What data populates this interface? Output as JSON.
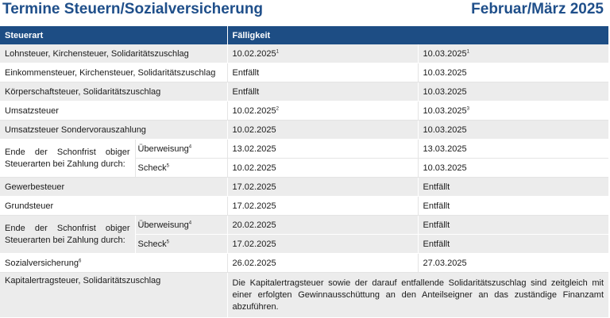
{
  "header": {
    "title": "Termine Steuern/Sozialversicherung",
    "period": "Februar/März 2025"
  },
  "table": {
    "columns": [
      "Steuerart",
      "Fälligkeit"
    ],
    "rows": {
      "lohnsteuer": {
        "label": "Lohnsteuer, Kirchensteuer, Solidaritätszuschlag",
        "feb": "10.02.2025",
        "feb_note": "1",
        "mar": "10.03.2025",
        "mar_note": "1"
      },
      "einkommensteuer": {
        "label": "Einkommensteuer, Kirchensteuer, Solidaritätszuschlag",
        "feb": "Entfällt",
        "mar": "10.03.2025"
      },
      "koerperschaftsteuer": {
        "label": "Körperschaftsteuer, Solidaritätszuschlag",
        "feb": "Entfällt",
        "mar": "10.03.2025"
      },
      "umsatzsteuer": {
        "label": "Umsatzsteuer",
        "feb": "10.02.2025",
        "feb_note": "2",
        "mar": "10.03.2025",
        "mar_note": "3"
      },
      "umsatzsteuer_sv": {
        "label": "Umsatzsteuer Sondervorauszahlung",
        "feb": "10.02.2025",
        "mar": "10.03.2025"
      },
      "schonfrist1": {
        "label": "Ende der Schonfrist obiger Steuerarten bei Zahlung durch:",
        "ueberweisung": "Überweisung",
        "ueberweisung_note": "4",
        "ueberweisung_feb": "13.02.2025",
        "ueberweisung_mar": "13.03.2025",
        "scheck": "Scheck",
        "scheck_note": "5",
        "scheck_feb": "10.02.2025",
        "scheck_mar": "10.03.2025"
      },
      "gewerbesteuer": {
        "label": "Gewerbesteuer",
        "feb": "17.02.2025",
        "mar": "Entfällt"
      },
      "grundsteuer": {
        "label": "Grundsteuer",
        "feb": "17.02.2025",
        "mar": "Entfällt"
      },
      "schonfrist2": {
        "label": "Ende der Schonfrist obiger Steuerarten bei Zahlung durch:",
        "ueberweisung": "Überweisung",
        "ueberweisung_note": "4",
        "ueberweisung_feb": "20.02.2025",
        "ueberweisung_mar": "Entfällt",
        "scheck": "Scheck",
        "scheck_note": "5",
        "scheck_feb": "17.02.2025",
        "scheck_mar": "Entfällt"
      },
      "sozialversicherung": {
        "label": "Sozialversicherung",
        "label_note": "6",
        "feb": "26.02.2025",
        "mar": "27.03.2025"
      },
      "kapitalertragsteuer": {
        "label": "Kapitalertragsteuer, Solidaritätszuschlag",
        "text": "Die Kapitalertragsteuer sowie der darauf entfallende Solidaritätszuschlag sind zeitgleich mit einer erfolgten Gewinnausschüttung an den Anteilseigner an das zuständige Finanzamt abzuführen."
      }
    }
  }
}
